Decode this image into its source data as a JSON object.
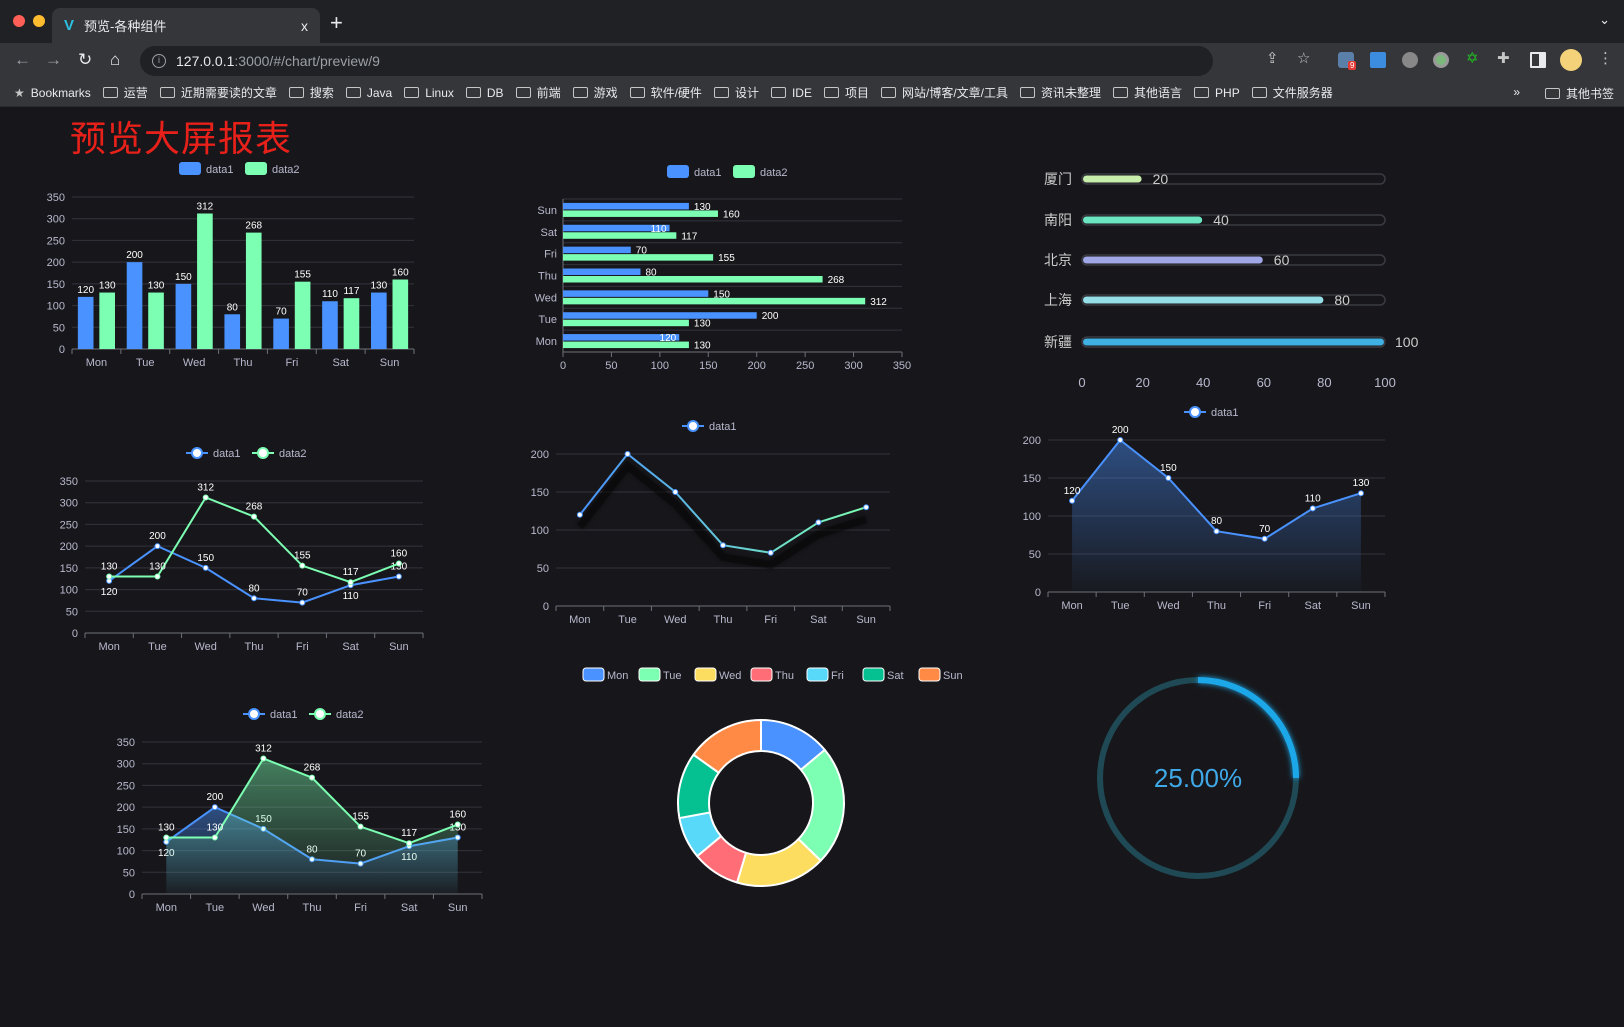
{
  "browser": {
    "tab_title": "预览-各种组件",
    "tab_close": "x",
    "new_tab": "+",
    "url_host": "127.0.0.1",
    "url_rest": ":3000/#/chart/preview/9",
    "extension_badge": "9",
    "bookmarks": [
      "Bookmarks",
      "运营",
      "近期需要读的文章",
      "搜索",
      "Java",
      "Linux",
      "DB",
      "前端",
      "游戏",
      "软件/硬件",
      "设计",
      "IDE",
      "项目",
      "网站/博客/文章/工具",
      "资讯未整理",
      "其他语言",
      "PHP",
      "文件服务器"
    ],
    "overflow": "»",
    "other_bookmarks": "其他书签"
  },
  "page": {
    "title": "预览大屏报表"
  },
  "colors": {
    "data1": "#4992ff",
    "data2": "#7cffb2",
    "title": "#e8201a",
    "gauge": "#1ea7e9",
    "gauge_track": "#1f4a55"
  },
  "chart_data": [
    {
      "type": "bar",
      "categories": [
        "Mon",
        "Tue",
        "Wed",
        "Thu",
        "Fri",
        "Sat",
        "Sun"
      ],
      "series": [
        {
          "name": "data1",
          "values": [
            120,
            200,
            150,
            80,
            70,
            110,
            130
          ]
        },
        {
          "name": "data2",
          "values": [
            130,
            130,
            312,
            268,
            155,
            117,
            160
          ]
        }
      ],
      "yticks": [
        "0",
        "50",
        "100",
        "150",
        "200",
        "250",
        "300",
        "350"
      ],
      "ylim": [
        0,
        350
      ],
      "legend": "top",
      "grid": true
    },
    {
      "type": "bar",
      "orientation": "horizontal",
      "categories": [
        "Mon",
        "Tue",
        "Wed",
        "Thu",
        "Fri",
        "Sat",
        "Sun"
      ],
      "series": [
        {
          "name": "data1",
          "values": [
            120,
            200,
            150,
            80,
            70,
            110,
            130
          ]
        },
        {
          "name": "data2",
          "values": [
            130,
            130,
            312,
            268,
            155,
            117,
            160
          ]
        }
      ],
      "xticks": [
        "0",
        "50",
        "100",
        "150",
        "200",
        "250",
        "300",
        "350"
      ],
      "xlim": [
        0,
        350
      ],
      "legend": "top",
      "grid": true
    },
    {
      "type": "bar",
      "orientation": "horizontal",
      "style": "progress",
      "categories": [
        "厦门",
        "南阳",
        "北京",
        "上海",
        "新疆"
      ],
      "values": [
        20,
        40,
        60,
        80,
        100
      ],
      "colors": [
        "#c7eeab",
        "#6be6c1",
        "#a0a7e6",
        "#96dee8",
        "#3fb1e3"
      ],
      "xticks": [
        "0",
        "20",
        "40",
        "60",
        "80",
        "100"
      ],
      "xlim": [
        0,
        100
      ]
    },
    {
      "type": "line",
      "categories": [
        "Mon",
        "Tue",
        "Wed",
        "Thu",
        "Fri",
        "Sat",
        "Sun"
      ],
      "series": [
        {
          "name": "data1",
          "values": [
            120,
            200,
            150,
            80,
            70,
            110,
            130
          ]
        },
        {
          "name": "data2",
          "values": [
            130,
            130,
            312,
            268,
            155,
            117,
            160
          ]
        }
      ],
      "yticks": [
        "0",
        "50",
        "100",
        "150",
        "200",
        "250",
        "300",
        "350"
      ],
      "ylim": [
        0,
        350
      ],
      "legend": "top",
      "grid": true
    },
    {
      "type": "line",
      "categories": [
        "Mon",
        "Tue",
        "Wed",
        "Thu",
        "Fri",
        "Sat",
        "Sun"
      ],
      "series": [
        {
          "name": "data1",
          "values": [
            120,
            200,
            150,
            80,
            70,
            110,
            130
          ]
        }
      ],
      "yticks": [
        "0",
        "50",
        "100",
        "150",
        "200"
      ],
      "ylim": [
        0,
        200
      ],
      "legend": "top",
      "grid": true
    },
    {
      "type": "area",
      "categories": [
        "Mon",
        "Tue",
        "Wed",
        "Thu",
        "Fri",
        "Sat",
        "Sun"
      ],
      "series": [
        {
          "name": "data1",
          "values": [
            120,
            200,
            150,
            80,
            70,
            110,
            130
          ]
        }
      ],
      "yticks": [
        "0",
        "50",
        "100",
        "150",
        "200"
      ],
      "ylim": [
        0,
        200
      ],
      "legend": "top",
      "grid": true
    },
    {
      "type": "area",
      "categories": [
        "Mon",
        "Tue",
        "Wed",
        "Thu",
        "Fri",
        "Sat",
        "Sun"
      ],
      "series": [
        {
          "name": "data1",
          "values": [
            120,
            200,
            150,
            80,
            70,
            110,
            130
          ]
        },
        {
          "name": "data2",
          "values": [
            130,
            130,
            312,
            268,
            155,
            117,
            160
          ]
        }
      ],
      "yticks": [
        "0",
        "50",
        "100",
        "150",
        "200",
        "250",
        "300",
        "350"
      ],
      "ylim": [
        0,
        350
      ],
      "legend": "top",
      "grid": true
    },
    {
      "type": "pie",
      "style": "donut",
      "categories": [
        "Mon",
        "Tue",
        "Wed",
        "Thu",
        "Fri",
        "Sat",
        "Sun"
      ],
      "values": [
        120,
        200,
        150,
        80,
        70,
        110,
        130
      ],
      "colors": [
        "#4992ff",
        "#7cffb2",
        "#fddd60",
        "#ff6e76",
        "#58d9f9",
        "#05c091",
        "#ff8a45"
      ],
      "legend": "top"
    },
    {
      "type": "gauge",
      "value": 25,
      "label": "25.00%"
    }
  ]
}
